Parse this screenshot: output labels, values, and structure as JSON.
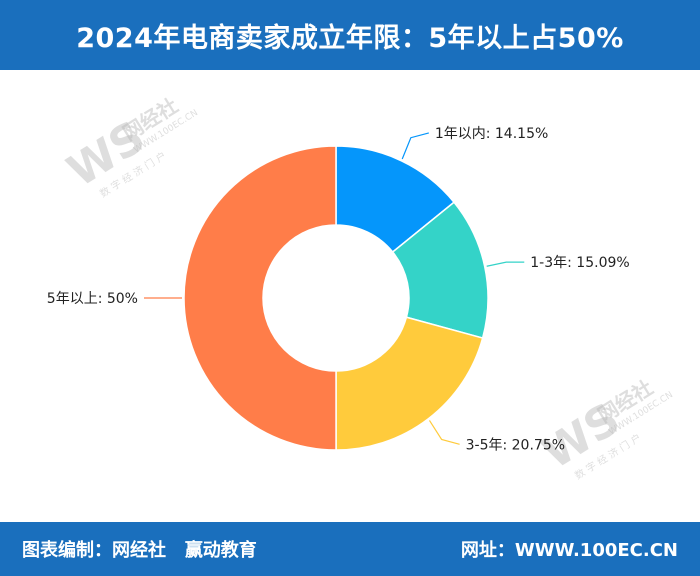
{
  "header": {
    "title": "2024年电商卖家成立年限：5年以上占50%"
  },
  "footer": {
    "credit_label": "图表编制：",
    "credit_org1": "网经社",
    "credit_org2": "赢动教育",
    "site_label": "网址：",
    "site_url": "WWW.100EC.CN"
  },
  "watermark": {
    "logo": "WS",
    "name": "网经社",
    "url": "WWW.100EC.CN",
    "sub": "数 字 经 济 门 户"
  },
  "colors": {
    "header_bg": "#1a6fbd",
    "footer_bg": "#1a6fbd"
  },
  "chart_data": {
    "type": "pie",
    "title": "",
    "donut": true,
    "slices": [
      {
        "label": "1年以内",
        "value": 14.15,
        "display": "1年以内: 14.15%",
        "color": "#0596fb"
      },
      {
        "label": "1-3年",
        "value": 15.09,
        "display": "1-3年: 15.09%",
        "color": "#34d3c8"
      },
      {
        "label": "3-5年",
        "value": 20.75,
        "display": "3-5年: 20.75%",
        "color": "#ffcb3c"
      },
      {
        "label": "5年以上",
        "value": 50,
        "display": "5年以上: 50%",
        "color": "#ff7d49"
      }
    ]
  }
}
